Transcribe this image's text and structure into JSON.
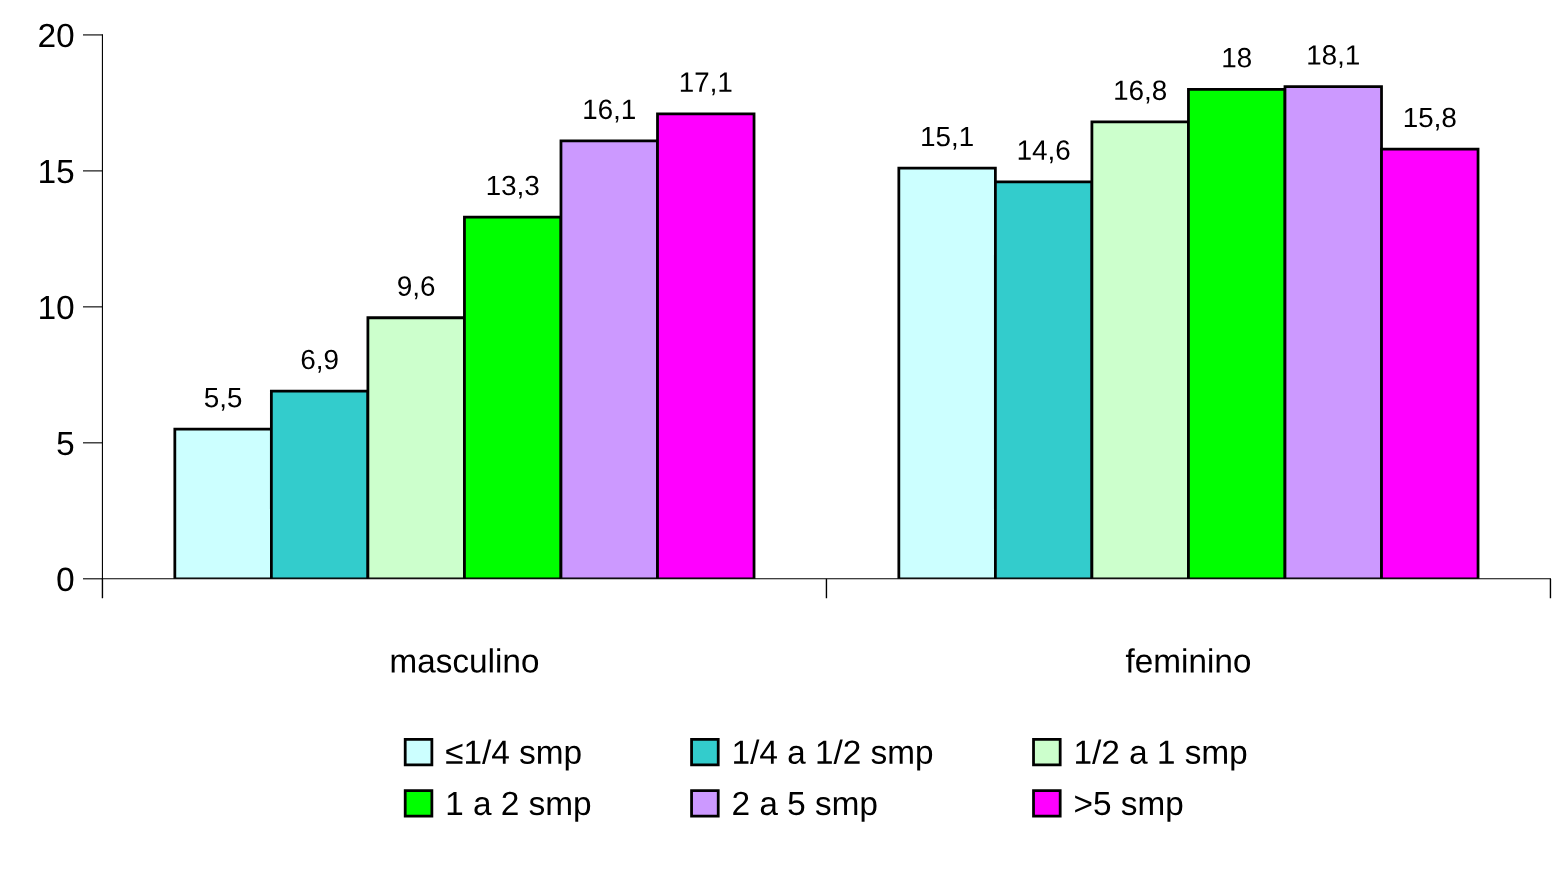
{
  "chart_data": {
    "type": "bar",
    "categories": [
      "masculino",
      "feminino"
    ],
    "series": [
      {
        "name": "≤1/4 smp",
        "color": "#ccffff",
        "values": [
          5.5,
          15.1
        ],
        "value_labels": [
          "5,5",
          "15,1"
        ]
      },
      {
        "name": "1/4 a 1/2 smp",
        "color": "#33cccc",
        "values": [
          6.9,
          14.6
        ],
        "value_labels": [
          "6,9",
          "14,6"
        ]
      },
      {
        "name": "1/2 a 1 smp",
        "color": "#ccffcc",
        "values": [
          9.6,
          16.8
        ],
        "value_labels": [
          "9,6",
          "16,8"
        ]
      },
      {
        "name": "1 a 2 smp",
        "color": "#00ff00",
        "values": [
          13.3,
          18.0
        ],
        "value_labels": [
          "13,3",
          "18"
        ]
      },
      {
        "name": "2 a 5 smp",
        "color": "#cc99ff",
        "values": [
          16.1,
          18.1
        ],
        "value_labels": [
          "16,1",
          "18,1"
        ]
      },
      {
        "name": ">5 smp",
        "color": "#ff00ff",
        "values": [
          17.1,
          15.8
        ],
        "value_labels": [
          "17,1",
          "15,8"
        ]
      }
    ],
    "ylim": [
      0,
      20
    ],
    "yticks": [
      0,
      5,
      10,
      15,
      20
    ],
    "grid": false,
    "legend": "bottom"
  }
}
